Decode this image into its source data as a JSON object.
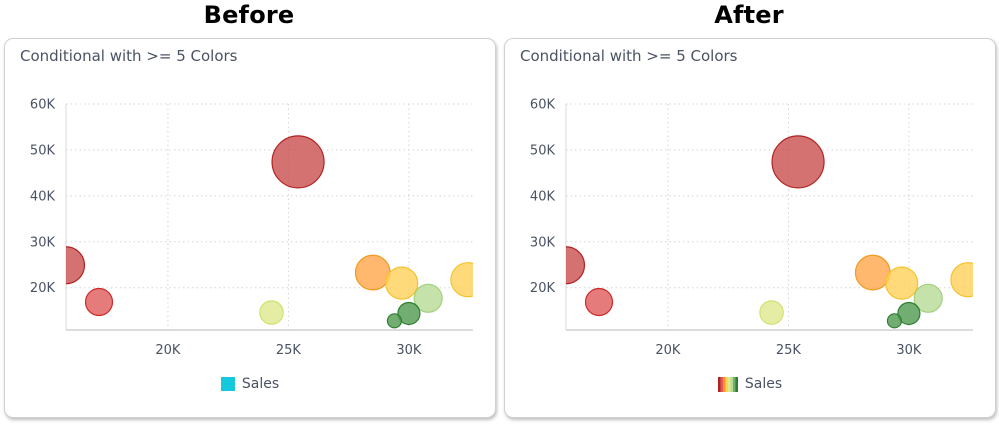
{
  "headings": {
    "left": "Before",
    "right": "After"
  },
  "chart_data": [
    {
      "type": "scatter",
      "variant": "bubble",
      "panel": "Before",
      "title": "Conditional with >= 5 Colors",
      "xlabel": "",
      "ylabel": "",
      "xlim": [
        15.77,
        32.66
      ],
      "ylim": [
        10.8,
        60
      ],
      "x_ticks": [
        {
          "value": 20,
          "label": "20K"
        },
        {
          "value": 25,
          "label": "25K"
        },
        {
          "value": 30,
          "label": "30K"
        }
      ],
      "y_ticks": [
        {
          "value": 20,
          "label": "20K"
        },
        {
          "value": 30,
          "label": "30K"
        },
        {
          "value": 40,
          "label": "40K"
        },
        {
          "value": 50,
          "label": "50K"
        },
        {
          "value": 60,
          "label": "60K"
        }
      ],
      "grid": true,
      "legend": {
        "position": "bottom",
        "entries": [
          {
            "label": "Sales",
            "swatch": "solid",
            "color": "#16c8de"
          }
        ]
      },
      "series": [
        {
          "name": "Sales",
          "points": [
            {
              "x": 15.77,
              "y": 24.9,
              "size": 18.5,
              "fill": "#c94f4f",
              "stroke": "#b22222"
            },
            {
              "x": 17.14,
              "y": 16.9,
              "size": 13.5,
              "fill": "#e05a5a",
              "stroke": "#cc2b2b"
            },
            {
              "x": 25.4,
              "y": 47.4,
              "size": 26,
              "fill": "#c94f4f",
              "stroke": "#b22222"
            },
            {
              "x": 24.3,
              "y": 14.6,
              "size": 11.7,
              "fill": "#dfe98f",
              "stroke": "#d2e06f"
            },
            {
              "x": 28.5,
              "y": 23.3,
              "size": 17.3,
              "fill": "#ffa64a",
              "stroke": "#f39a1e"
            },
            {
              "x": 29.7,
              "y": 21.0,
              "size": 16,
              "fill": "#ffd15a",
              "stroke": "#f6c12c"
            },
            {
              "x": 30.8,
              "y": 17.7,
              "size": 14,
              "fill": "#b7db95",
              "stroke": "#a3cf7d"
            },
            {
              "x": 30.0,
              "y": 14.4,
              "size": 11,
              "fill": "#4f9a4f",
              "stroke": "#2e7d32"
            },
            {
              "x": 29.4,
              "y": 12.8,
              "size": 7,
              "fill": "#4f9a4f",
              "stroke": "#2e7d32"
            },
            {
              "x": 32.45,
              "y": 21.75,
              "size": 17,
              "fill": "#ffd15a",
              "stroke": "#f6c12c"
            }
          ]
        }
      ]
    },
    {
      "type": "scatter",
      "variant": "bubble",
      "panel": "After",
      "title": "Conditional with >= 5 Colors",
      "xlabel": "",
      "ylabel": "",
      "xlim": [
        15.77,
        32.66
      ],
      "ylim": [
        10.8,
        60
      ],
      "x_ticks": [
        {
          "value": 20,
          "label": "20K"
        },
        {
          "value": 25,
          "label": "25K"
        },
        {
          "value": 30,
          "label": "30K"
        }
      ],
      "y_ticks": [
        {
          "value": 20,
          "label": "20K"
        },
        {
          "value": 30,
          "label": "30K"
        },
        {
          "value": 40,
          "label": "40K"
        },
        {
          "value": 50,
          "label": "50K"
        },
        {
          "value": 60,
          "label": "60K"
        }
      ],
      "grid": true,
      "legend": {
        "position": "bottom",
        "entries": [
          {
            "label": "Sales",
            "swatch": "gradient",
            "colors": [
              "#b22222",
              "#e05a5a",
              "#f39a1e",
              "#ffd15a",
              "#dfe98f",
              "#b7db95",
              "#6fb06f",
              "#2e7d32"
            ]
          }
        ]
      },
      "series": [
        {
          "name": "Sales",
          "points": [
            {
              "x": 15.77,
              "y": 24.9,
              "size": 18.5,
              "fill": "#c94f4f",
              "stroke": "#b22222"
            },
            {
              "x": 17.14,
              "y": 16.9,
              "size": 13.5,
              "fill": "#e05a5a",
              "stroke": "#cc2b2b"
            },
            {
              "x": 25.4,
              "y": 47.4,
              "size": 26,
              "fill": "#c94f4f",
              "stroke": "#b22222"
            },
            {
              "x": 24.3,
              "y": 14.6,
              "size": 11.7,
              "fill": "#dfe98f",
              "stroke": "#d2e06f"
            },
            {
              "x": 28.5,
              "y": 23.3,
              "size": 17.3,
              "fill": "#ffa64a",
              "stroke": "#f39a1e"
            },
            {
              "x": 29.7,
              "y": 21.0,
              "size": 16,
              "fill": "#ffd15a",
              "stroke": "#f6c12c"
            },
            {
              "x": 30.8,
              "y": 17.7,
              "size": 14,
              "fill": "#b7db95",
              "stroke": "#a3cf7d"
            },
            {
              "x": 30.0,
              "y": 14.4,
              "size": 11,
              "fill": "#4f9a4f",
              "stroke": "#2e7d32"
            },
            {
              "x": 29.4,
              "y": 12.8,
              "size": 7,
              "fill": "#4f9a4f",
              "stroke": "#2e7d32"
            },
            {
              "x": 32.45,
              "y": 21.75,
              "size": 17,
              "fill": "#ffd15a",
              "stroke": "#f6c12c"
            }
          ]
        }
      ]
    }
  ]
}
